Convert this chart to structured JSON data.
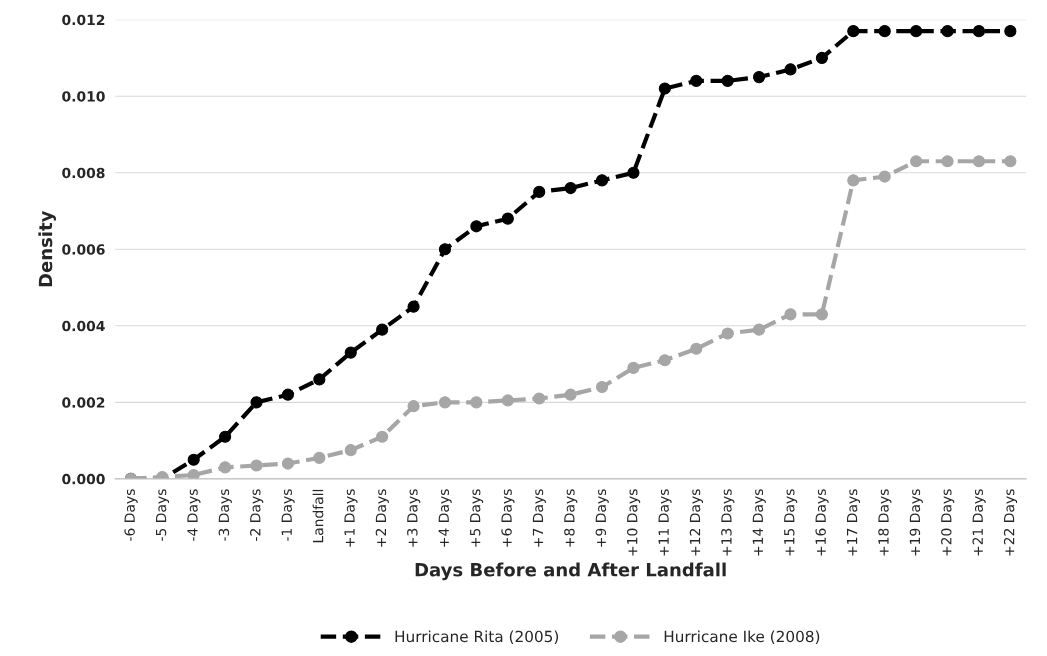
{
  "chart_data": {
    "type": "line",
    "xlabel": "Days Before and After Landfall",
    "ylabel": "Density",
    "categories": [
      "-6 Days",
      "-5 Days",
      "-4 Days",
      "-3 Days",
      "-2 Days",
      "-1 Days",
      "Landfall",
      "+1 Days",
      "+2 Days",
      "+3 Days",
      "+4 Days",
      "+5 Days",
      "+6 Days",
      "+7 Days",
      "+8 Days",
      "+9 Days",
      "+10 Days",
      "+11 Days",
      "+12 Days",
      "+13 Days",
      "+14 Days",
      "+15 Days",
      "+16 Days",
      "+17 Days",
      "+18 Days",
      "+19 Days",
      "+20 Days",
      "+21 Days",
      "+22 Days"
    ],
    "series": [
      {
        "name": "Hurricane Rita (2005)",
        "color": "#000000",
        "values": [
          0.0,
          0.0,
          0.0005,
          0.0011,
          0.002,
          0.0022,
          0.0026,
          0.0033,
          0.0039,
          0.0045,
          0.006,
          0.0066,
          0.0068,
          0.0075,
          0.0076,
          0.0078,
          0.008,
          0.0102,
          0.0104,
          0.0104,
          0.0105,
          0.0107,
          0.011,
          0.0117,
          0.0117,
          0.0117,
          0.0117,
          0.0117,
          0.0117
        ]
      },
      {
        "name": "Hurricane Ike (2008)",
        "color": "#a6a6a6",
        "values": [
          0.0,
          5e-05,
          0.0001,
          0.0003,
          0.00035,
          0.0004,
          0.00055,
          0.00075,
          0.0011,
          0.0019,
          0.002,
          0.002,
          0.00205,
          0.0021,
          0.0022,
          0.0024,
          0.0029,
          0.0031,
          0.0034,
          0.0038,
          0.0039,
          0.0043,
          0.0043,
          0.0078,
          0.0079,
          0.0083,
          0.0083,
          0.0083,
          0.0083
        ]
      }
    ],
    "ylim": [
      0,
      0.012
    ],
    "yticks": [
      {
        "value": 0,
        "label": "0.000"
      },
      {
        "value": 0.002,
        "label": "0.002"
      },
      {
        "value": 0.004,
        "label": "0.004"
      },
      {
        "value": 0.006,
        "label": "0.006"
      },
      {
        "value": 0.008,
        "label": "0.008"
      },
      {
        "value": 0.01,
        "label": "0.010"
      },
      {
        "value": 0.012,
        "label": "0.012"
      }
    ],
    "grid": "y",
    "legend": "bottom",
    "marker": "circle",
    "line_style": "dashed"
  }
}
